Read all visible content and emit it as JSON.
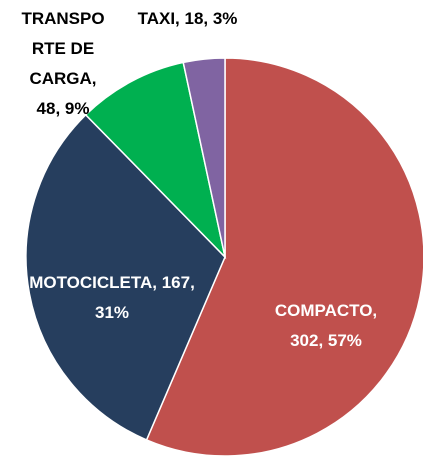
{
  "chart_data": {
    "type": "pie",
    "values": [
      302,
      167,
      48,
      18
    ],
    "value_labels": [
      "COMPACTO, 302, 57%",
      "MOTOCICLETA, 167, 31%",
      "TRANSPORTE DE CARGA, 48, 9%",
      "TAXI, 18, 3%"
    ],
    "colors": [
      "#c0504d",
      "#263e5e",
      "#00b050",
      "#8064a2"
    ]
  }
}
